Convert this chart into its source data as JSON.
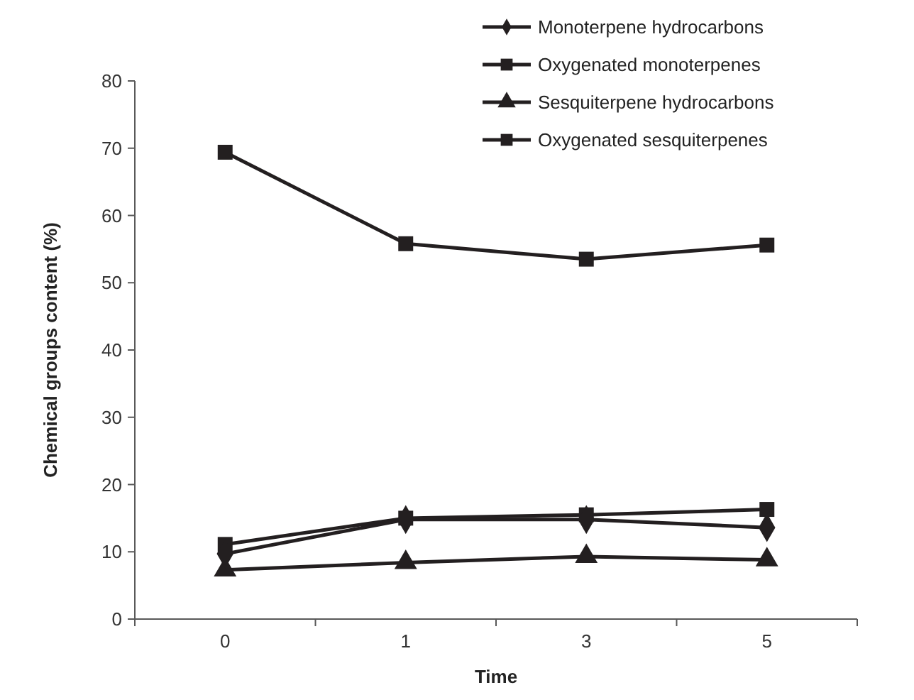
{
  "chart_data": {
    "type": "line",
    "xlabel": "Time",
    "ylabel": "Chemical groups content (%)",
    "categories": [
      "0",
      "1",
      "3",
      "5"
    ],
    "series": [
      {
        "name": "Monoterpene hydrocarbons",
        "color": "#231f20",
        "marker": "diamond",
        "values": [
          9.7,
          14.8,
          14.8,
          13.6
        ]
      },
      {
        "name": "Oxygenated monoterpenes",
        "color": "#231f20",
        "marker": "square",
        "values": [
          69.4,
          55.8,
          53.5,
          55.6
        ]
      },
      {
        "name": "Sesquiterpene hydrocarbons",
        "color": "#231f20",
        "marker": "triangle",
        "values": [
          7.3,
          8.4,
          9.3,
          8.8
        ]
      },
      {
        "name": "Oxygenated sesquiterpenes",
        "color": "#231f20",
        "marker": "square",
        "values": [
          11.1,
          15.0,
          15.5,
          16.3
        ]
      }
    ],
    "ylim": [
      0,
      80
    ],
    "yticks": [
      0,
      10,
      20,
      30,
      40,
      50,
      60,
      70,
      80
    ],
    "grid": false,
    "legend": "top right"
  }
}
